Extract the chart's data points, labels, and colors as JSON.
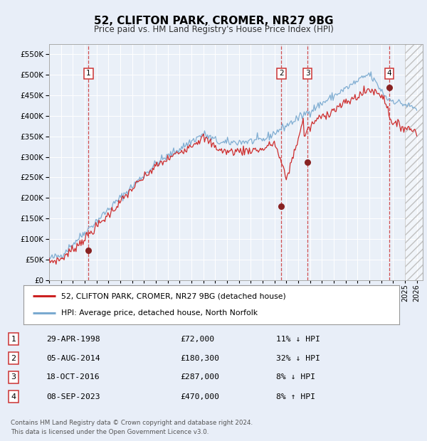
{
  "title": "52, CLIFTON PARK, CROMER, NR27 9BG",
  "subtitle": "Price paid vs. HM Land Registry's House Price Index (HPI)",
  "ylim": [
    0,
    575000
  ],
  "yticks": [
    0,
    50000,
    100000,
    150000,
    200000,
    250000,
    300000,
    350000,
    400000,
    450000,
    500000,
    550000
  ],
  "xlim_start": 1995.0,
  "xlim_end": 2026.5,
  "background_color": "#e8eef8",
  "plot_bg": "#eaf0f8",
  "hpi_color": "#7aaad0",
  "price_color": "#cc2222",
  "sale_marker_color": "#882222",
  "dashed_line_color": "#cc3333",
  "legend_label_price": "52, CLIFTON PARK, CROMER, NR27 9BG (detached house)",
  "legend_label_hpi": "HPI: Average price, detached house, North Norfolk",
  "transactions": [
    {
      "num": 1,
      "date": "29-APR-1998",
      "price": 72000,
      "pct": "11%",
      "dir": "↓",
      "x": 1998.33
    },
    {
      "num": 2,
      "date": "05-AUG-2014",
      "price": 180300,
      "pct": "32%",
      "dir": "↓",
      "x": 2014.58
    },
    {
      "num": 3,
      "date": "18-OCT-2016",
      "price": 287000,
      "pct": "8%",
      "dir": "↓",
      "x": 2016.79
    },
    {
      "num": 4,
      "date": "08-SEP-2023",
      "price": 470000,
      "pct": "8%",
      "dir": "↑",
      "x": 2023.69
    }
  ],
  "footer": "Contains HM Land Registry data © Crown copyright and database right 2024.\nThis data is licensed under the Open Government Licence v3.0."
}
